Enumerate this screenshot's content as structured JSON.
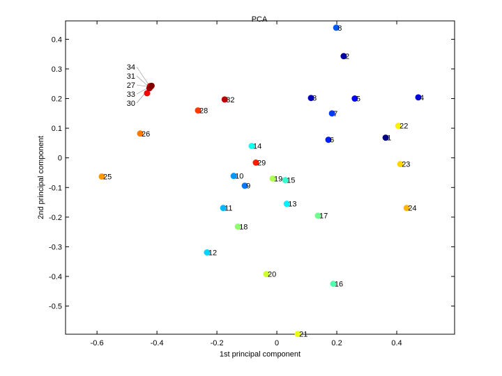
{
  "chart_data": {
    "type": "scatter",
    "title": "PCA",
    "xlabel": "1st principal component",
    "ylabel": "2nd principal component",
    "xlim": [
      -0.705,
      0.593
    ],
    "ylim": [
      -0.595,
      0.462
    ],
    "xticks": [
      -0.6,
      -0.4,
      -0.2,
      0,
      0.2,
      0.4
    ],
    "xtick_labels": [
      "-0.6",
      "-0.4",
      "-0.2",
      "0",
      "0.2",
      "0.4"
    ],
    "yticks": [
      0.4,
      0.3,
      0.2,
      0.1,
      0,
      -0.1,
      -0.2,
      -0.3,
      -0.4,
      -0.5
    ],
    "ytick_labels": [
      "0.4",
      "0.3",
      "0.2",
      "0.1",
      "0",
      "-0.1",
      "-0.2",
      "-0.3",
      "-0.4",
      "-0.5"
    ],
    "grid": false,
    "colormap": "jet",
    "points": [
      {
        "label": "1",
        "x": 0.363,
        "y": 0.068
      },
      {
        "label": "2",
        "x": 0.223,
        "y": 0.343
      },
      {
        "label": "3",
        "x": 0.114,
        "y": 0.202
      },
      {
        "label": "4",
        "x": 0.472,
        "y": 0.204
      },
      {
        "label": "5",
        "x": 0.26,
        "y": 0.2
      },
      {
        "label": "6",
        "x": 0.172,
        "y": 0.061
      },
      {
        "label": "7",
        "x": 0.184,
        "y": 0.15
      },
      {
        "label": "8",
        "x": 0.198,
        "y": 0.439
      },
      {
        "label": "9",
        "x": -0.107,
        "y": -0.094
      },
      {
        "label": "10",
        "x": -0.144,
        "y": -0.061
      },
      {
        "label": "11",
        "x": -0.179,
        "y": -0.169
      },
      {
        "label": "12",
        "x": -0.233,
        "y": -0.319
      },
      {
        "label": "13",
        "x": 0.033,
        "y": -0.155
      },
      {
        "label": "14",
        "x": -0.084,
        "y": 0.04
      },
      {
        "label": "15",
        "x": 0.028,
        "y": -0.075
      },
      {
        "label": "16",
        "x": 0.188,
        "y": -0.425
      },
      {
        "label": "17",
        "x": 0.137,
        "y": -0.195
      },
      {
        "label": "18",
        "x": -0.13,
        "y": -0.232
      },
      {
        "label": "19",
        "x": -0.014,
        "y": -0.07
      },
      {
        "label": "20",
        "x": -0.035,
        "y": -0.392
      },
      {
        "label": "21",
        "x": 0.07,
        "y": -0.594
      },
      {
        "label": "22",
        "x": 0.405,
        "y": 0.108
      },
      {
        "label": "23",
        "x": 0.412,
        "y": -0.021
      },
      {
        "label": "24",
        "x": 0.433,
        "y": -0.169
      },
      {
        "label": "25",
        "x": -0.584,
        "y": -0.063
      },
      {
        "label": "26",
        "x": -0.456,
        "y": 0.082
      },
      {
        "label": "27",
        "x": -0.42,
        "y": 0.24
      },
      {
        "label": "28",
        "x": -0.263,
        "y": 0.16
      },
      {
        "label": "29",
        "x": -0.07,
        "y": -0.016
      },
      {
        "label": "30",
        "x": -0.433,
        "y": 0.218
      },
      {
        "label": "31",
        "x": -0.423,
        "y": 0.242
      },
      {
        "label": "32",
        "x": -0.174,
        "y": 0.197
      },
      {
        "label": "33",
        "x": -0.425,
        "y": 0.235
      },
      {
        "label": "34",
        "x": -0.418,
        "y": 0.243
      }
    ]
  }
}
